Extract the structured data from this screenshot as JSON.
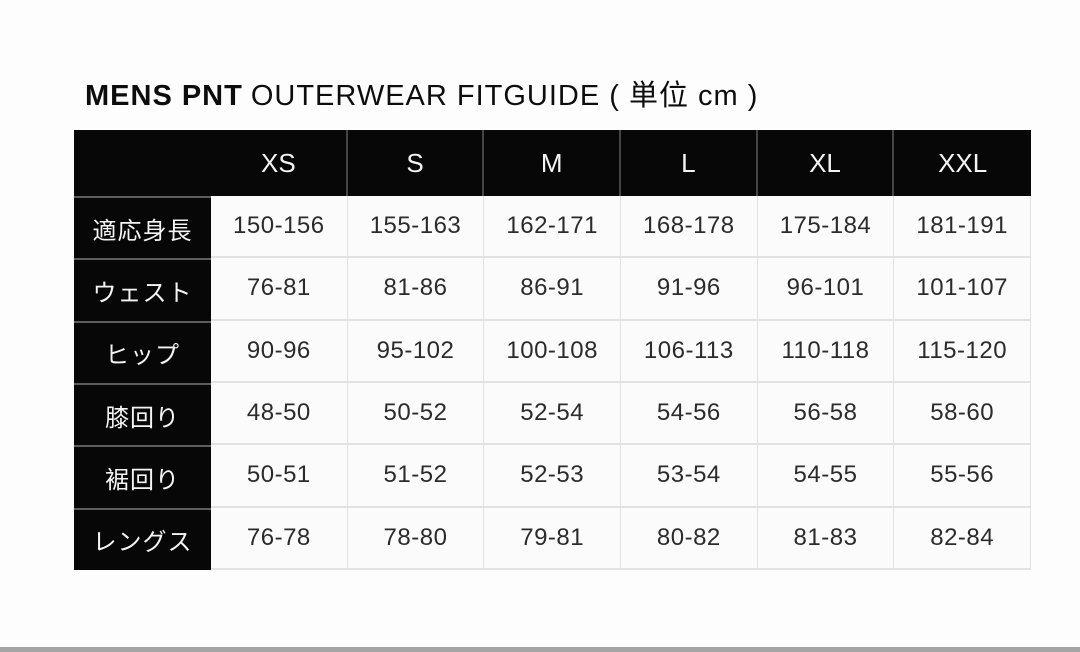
{
  "header": {
    "brand": "MENS PNT",
    "subtitle": "OUTERWEAR FITGUIDE ( 単位 cm )"
  },
  "chart_data": {
    "type": "table",
    "title": "MENS PNT OUTERWEAR FITGUIDE ( 単位 cm )",
    "unit": "cm",
    "columns": [
      "",
      "XS",
      "S",
      "M",
      "L",
      "XL",
      "XXL"
    ],
    "rows": [
      {
        "label": "適応身長",
        "values": [
          "150-156",
          "155-163",
          "162-171",
          "168-178",
          "175-184",
          "181-191"
        ]
      },
      {
        "label": "ウェスト",
        "values": [
          "76-81",
          "81-86",
          "86-91",
          "91-96",
          "96-101",
          "101-107"
        ]
      },
      {
        "label": "ヒップ",
        "values": [
          "90-96",
          "95-102",
          "100-108",
          "106-113",
          "110-118",
          "115-120"
        ]
      },
      {
        "label": "膝回り",
        "values": [
          "48-50",
          "50-52",
          "52-54",
          "54-56",
          "56-58",
          "58-60"
        ]
      },
      {
        "label": "裾回り",
        "values": [
          "50-51",
          "51-52",
          "52-53",
          "53-54",
          "54-55",
          "55-56"
        ]
      },
      {
        "label": "レングス",
        "values": [
          "76-78",
          "78-80",
          "79-81",
          "80-82",
          "81-83",
          "82-84"
        ]
      }
    ]
  },
  "colors": {
    "header_bg": "#070707",
    "header_text": "#f4f4f4",
    "cell_bg": "#fbfbfb",
    "cell_text": "#2b2b2b",
    "cell_border": "#e2e2e2",
    "bottom_bar": "#a5a5a5"
  }
}
